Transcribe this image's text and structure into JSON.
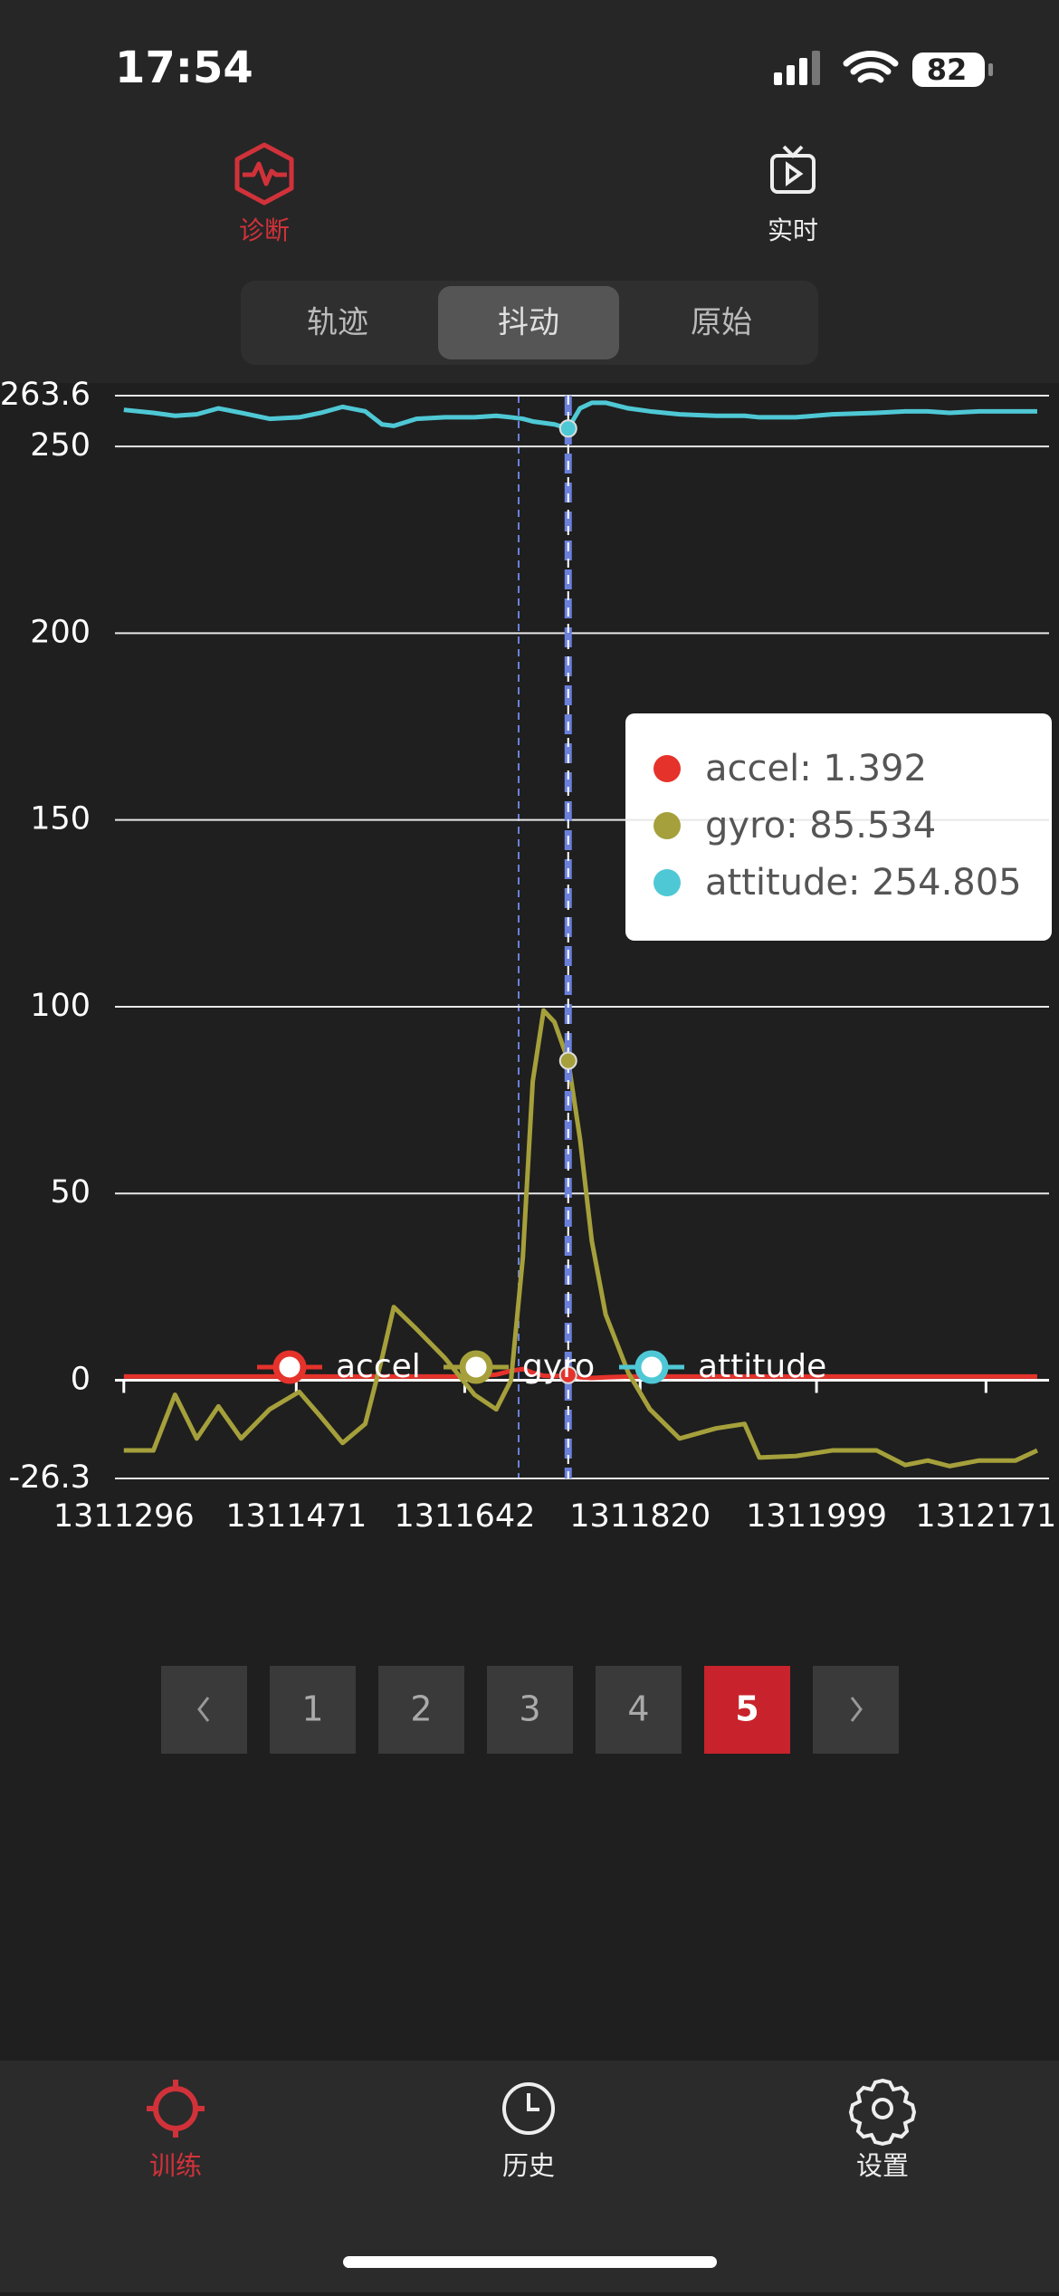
{
  "status_bar": {
    "time": "17:54",
    "battery": 82
  },
  "top_tabs": {
    "items": [
      "诊断",
      "实时"
    ],
    "active": 0
  },
  "segments": {
    "items": [
      "轨迹",
      "抖动",
      "原始"
    ],
    "active": 1
  },
  "chart_data": {
    "type": "line",
    "x": [
      1311296,
      1311326,
      1311348,
      1311370,
      1311392,
      1311415,
      1311444,
      1311474,
      1311496,
      1311518,
      1311541,
      1311558,
      1311570,
      1311593,
      1311622,
      1311652,
      1311674,
      1311689,
      1311701,
      1311711,
      1311722,
      1311733,
      1311747,
      1311759,
      1311771,
      1311785,
      1311808,
      1311830,
      1311860,
      1311897,
      1311926,
      1311941,
      1311978,
      1312015,
      1312060,
      1312089,
      1312112,
      1312134,
      1312164,
      1312201,
      1312223
    ],
    "series": [
      {
        "name": "accel",
        "color": "#e5322b",
        "values": [
          1,
          1,
          1,
          1,
          1,
          1,
          1,
          1,
          1,
          1,
          1,
          1,
          1,
          1,
          1,
          1,
          1.5,
          2.5,
          3,
          2,
          1.2,
          1.1,
          1.392,
          0.8,
          0.6,
          0.8,
          1,
          1,
          1,
          1,
          1,
          1,
          1,
          1,
          1,
          1,
          1,
          1,
          1,
          1,
          1
        ]
      },
      {
        "name": "gyro",
        "color": "#a5a03b",
        "values": [
          -18.8,
          -18.8,
          -3.9,
          -15.6,
          -7,
          -15.6,
          -7.8,
          -3.1,
          -9.8,
          -16.8,
          -11.7,
          5.9,
          19.6,
          13.7,
          5.9,
          -3.9,
          -7.8,
          0,
          33,
          80,
          99,
          95.9,
          85.534,
          64.6,
          37.2,
          17.6,
          2,
          -7.8,
          -15.6,
          -12.9,
          -11.7,
          -20.7,
          -20.3,
          -18.8,
          -18.8,
          -22.7,
          -21.5,
          -23,
          -21.5,
          -21.5,
          -18.8
        ]
      },
      {
        "name": "attitude",
        "color": "#4fc8d5",
        "values": [
          259.8,
          259.0,
          258.2,
          258.6,
          260.2,
          259.0,
          257.4,
          257.8,
          259.0,
          260.6,
          259.4,
          255.9,
          255.5,
          257.4,
          257.8,
          257.8,
          258.2,
          257.8,
          257.4,
          256.7,
          256.3,
          255.9,
          254.805,
          260.2,
          261.7,
          261.7,
          260.2,
          259.4,
          258.6,
          258.2,
          258.2,
          257.8,
          257.8,
          258.6,
          259.0,
          259.4,
          259.4,
          259.0,
          259.4,
          259.4,
          259.4
        ]
      }
    ],
    "xlim": [
      1311287,
      1312235
    ],
    "xticks": [
      1311296,
      1311471,
      1311642,
      1311820,
      1311999,
      1312171
    ],
    "ylim": [
      -26.3,
      263.6
    ],
    "yticks": [
      -26.3,
      0,
      50,
      100,
      150,
      200,
      250,
      263.6
    ],
    "grid": true,
    "tooltip": {
      "x": 1311747,
      "items": [
        "accel: 1.392",
        "gyro: 85.534",
        "attitude: 254.805"
      ]
    }
  },
  "pagination": {
    "pages": [
      1,
      2,
      3,
      4,
      5
    ],
    "active": 4
  },
  "bottom_nav": {
    "items": [
      "训练",
      "历史",
      "设置"
    ],
    "active": 0
  }
}
